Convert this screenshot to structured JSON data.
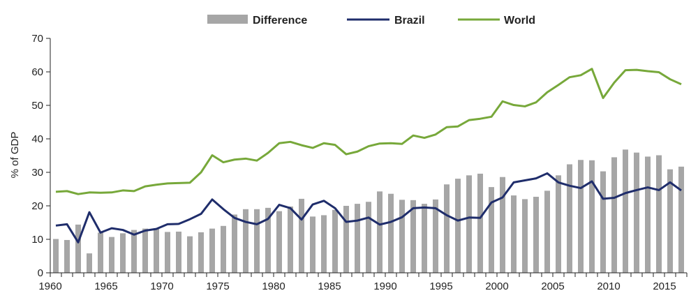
{
  "chart_data": {
    "type": "bar+line",
    "ylabel": "% of GDP",
    "xlabel": "",
    "ylim": [
      0,
      70
    ],
    "xlim": [
      1960,
      2017
    ],
    "y_ticks": [
      "0",
      "10",
      "20",
      "30",
      "40",
      "50",
      "60",
      "70"
    ],
    "x_ticks": [
      "1960",
      "1965",
      "1970",
      "1975",
      "1980",
      "1985",
      "1990",
      "1995",
      "2000",
      "2005",
      "2010",
      "2015"
    ],
    "legend_position": "top-center",
    "grid": false,
    "x": [
      1960,
      1961,
      1962,
      1963,
      1964,
      1965,
      1966,
      1967,
      1968,
      1969,
      1970,
      1971,
      1972,
      1973,
      1974,
      1975,
      1976,
      1977,
      1978,
      1979,
      1980,
      1981,
      1982,
      1983,
      1984,
      1985,
      1986,
      1987,
      1988,
      1989,
      1990,
      1991,
      1992,
      1993,
      1994,
      1995,
      1996,
      1997,
      1998,
      1999,
      2000,
      2001,
      2002,
      2003,
      2004,
      2005,
      2006,
      2007,
      2008,
      2009,
      2010,
      2011,
      2012,
      2013,
      2014,
      2015,
      2016
    ],
    "series": [
      {
        "name": "Difference",
        "kind": "bar",
        "color": "#a6a6a6",
        "values": [
          10.1,
          9.8,
          14.4,
          5.8,
          12.0,
          10.7,
          11.8,
          12.8,
          13.2,
          13.3,
          12.2,
          12.3,
          10.9,
          12.1,
          13.2,
          14.0,
          17.4,
          19.0,
          19.0,
          19.4,
          18.4,
          19.8,
          22.1,
          16.8,
          17.2,
          18.8,
          20.0,
          20.6,
          21.2,
          24.3,
          23.6,
          21.8,
          21.7,
          20.6,
          21.9,
          26.4,
          28.1,
          29.1,
          29.6,
          25.6,
          28.6,
          23.1,
          22.0,
          22.7,
          24.5,
          29.1,
          32.4,
          33.7,
          33.6,
          30.3,
          34.5,
          36.8,
          35.9,
          34.7,
          35.1,
          30.9,
          31.7
        ]
      },
      {
        "name": "Brazil",
        "kind": "line",
        "color": "#1f2d6b",
        "values": [
          14.1,
          14.5,
          9.1,
          18.1,
          12.0,
          13.3,
          12.8,
          11.4,
          12.6,
          13.1,
          14.5,
          14.6,
          16.0,
          17.6,
          21.9,
          19.0,
          16.4,
          15.2,
          14.5,
          16.1,
          20.3,
          19.3,
          15.9,
          20.4,
          21.5,
          19.3,
          15.2,
          15.6,
          16.5,
          14.4,
          15.2,
          16.6,
          19.3,
          19.5,
          19.3,
          17.2,
          15.6,
          16.5,
          16.4,
          21.0,
          22.5,
          27.0,
          27.6,
          28.2,
          29.7,
          27.0,
          26.0,
          25.3,
          27.3,
          22.1,
          22.4,
          23.8,
          24.7,
          25.5,
          24.7,
          27.0,
          24.6
        ]
      },
      {
        "name": "World",
        "kind": "line",
        "color": "#77a83a",
        "values": [
          24.2,
          24.4,
          23.5,
          24.0,
          23.9,
          24.0,
          24.6,
          24.4,
          25.8,
          26.3,
          26.7,
          26.8,
          26.9,
          30.0,
          35.1,
          33.0,
          33.8,
          34.1,
          33.5,
          35.8,
          38.7,
          39.1,
          38.1,
          37.3,
          38.7,
          38.2,
          35.4,
          36.2,
          37.8,
          38.6,
          38.7,
          38.5,
          41.0,
          40.3,
          41.3,
          43.5,
          43.7,
          45.6,
          46.0,
          46.6,
          51.2,
          50.1,
          49.7,
          50.9,
          53.9,
          56.1,
          58.4,
          59.0,
          60.9,
          52.2,
          56.8,
          60.5,
          60.6,
          60.2,
          59.9,
          57.8,
          56.3
        ]
      }
    ]
  }
}
